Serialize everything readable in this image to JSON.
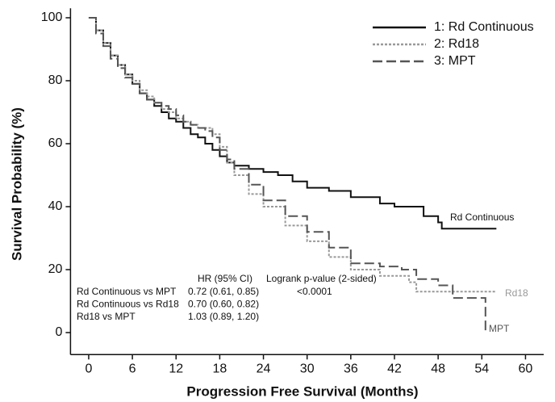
{
  "chart_data": {
    "type": "step",
    "x_label": "Progression Free Survival (Months)",
    "y_label": "Survival Probability (%)",
    "xlim": [
      -2.5,
      62.5
    ],
    "xticks": [
      0,
      6,
      12,
      18,
      24,
      30,
      36,
      42,
      48,
      54,
      60
    ],
    "ylim": [
      -7,
      103
    ],
    "yticks": [
      0,
      20,
      40,
      60,
      80,
      100
    ],
    "legend": "top right",
    "series": [
      {
        "name": "1: Rd Continuous",
        "color": "#111111",
        "dash": "solid",
        "x": [
          0,
          1,
          2,
          3,
          4,
          5,
          6,
          7,
          8,
          9,
          10,
          11,
          12,
          13,
          14,
          15,
          16,
          17,
          18,
          19,
          20,
          22,
          24,
          26,
          28,
          30,
          33,
          36,
          40,
          42,
          46,
          48,
          48.5,
          56
        ],
        "values": [
          100,
          96,
          92,
          88,
          85,
          82,
          79,
          76,
          74,
          72,
          70,
          68,
          67,
          65,
          63,
          62,
          60,
          58,
          56,
          54,
          53,
          52,
          51,
          50,
          48,
          46,
          45,
          43,
          41,
          40,
          37,
          35,
          33,
          33
        ]
      },
      {
        "name": "2: Rd18",
        "color": "#999999",
        "dash": "dot",
        "x": [
          0,
          1,
          2,
          3,
          4,
          5,
          6,
          7,
          8,
          9,
          10,
          11,
          12,
          13,
          14,
          15,
          16,
          17,
          18,
          19,
          20,
          22,
          24,
          27,
          30,
          33,
          36,
          40,
          44,
          45,
          56
        ],
        "values": [
          100,
          96,
          92,
          88,
          85,
          82,
          80,
          77,
          75,
          73,
          71,
          70,
          68,
          67,
          66,
          65,
          65,
          63,
          59,
          54,
          50,
          44,
          40,
          34,
          29,
          24,
          20,
          18,
          16,
          13,
          13
        ]
      },
      {
        "name": "3: MPT",
        "color": "#555555",
        "dash": "dash",
        "x": [
          0,
          1,
          2,
          3,
          4,
          5,
          6,
          7,
          8,
          9,
          10,
          11,
          12,
          13,
          14,
          15,
          16,
          17,
          18,
          19,
          20,
          22,
          24,
          27,
          30,
          33,
          36,
          40,
          43,
          45,
          48,
          50,
          54,
          54.5
        ],
        "values": [
          100,
          95,
          91,
          87,
          84,
          81,
          79,
          76,
          74,
          73,
          72,
          71,
          69,
          67,
          66,
          65,
          64,
          62,
          58,
          55,
          52,
          47,
          42,
          37,
          32,
          27,
          22,
          21,
          20,
          17,
          15,
          11,
          11,
          0
        ]
      }
    ],
    "curve_labels": [
      "Rd Continuous",
      "Rd18",
      "MPT"
    ],
    "table": {
      "header": [
        "HR (95% CI)",
        "Logrank p-value (2-sided)"
      ],
      "rows": [
        [
          "Rd Continuous vs MPT",
          "0.72 (0.61, 0.85)",
          "<0.0001"
        ],
        [
          "Rd Continuous vs Rd18",
          "0.70 (0.60, 0.82)"
        ],
        [
          "Rd18 vs MPT",
          "1.03 (0.89, 1.20)"
        ]
      ]
    }
  }
}
